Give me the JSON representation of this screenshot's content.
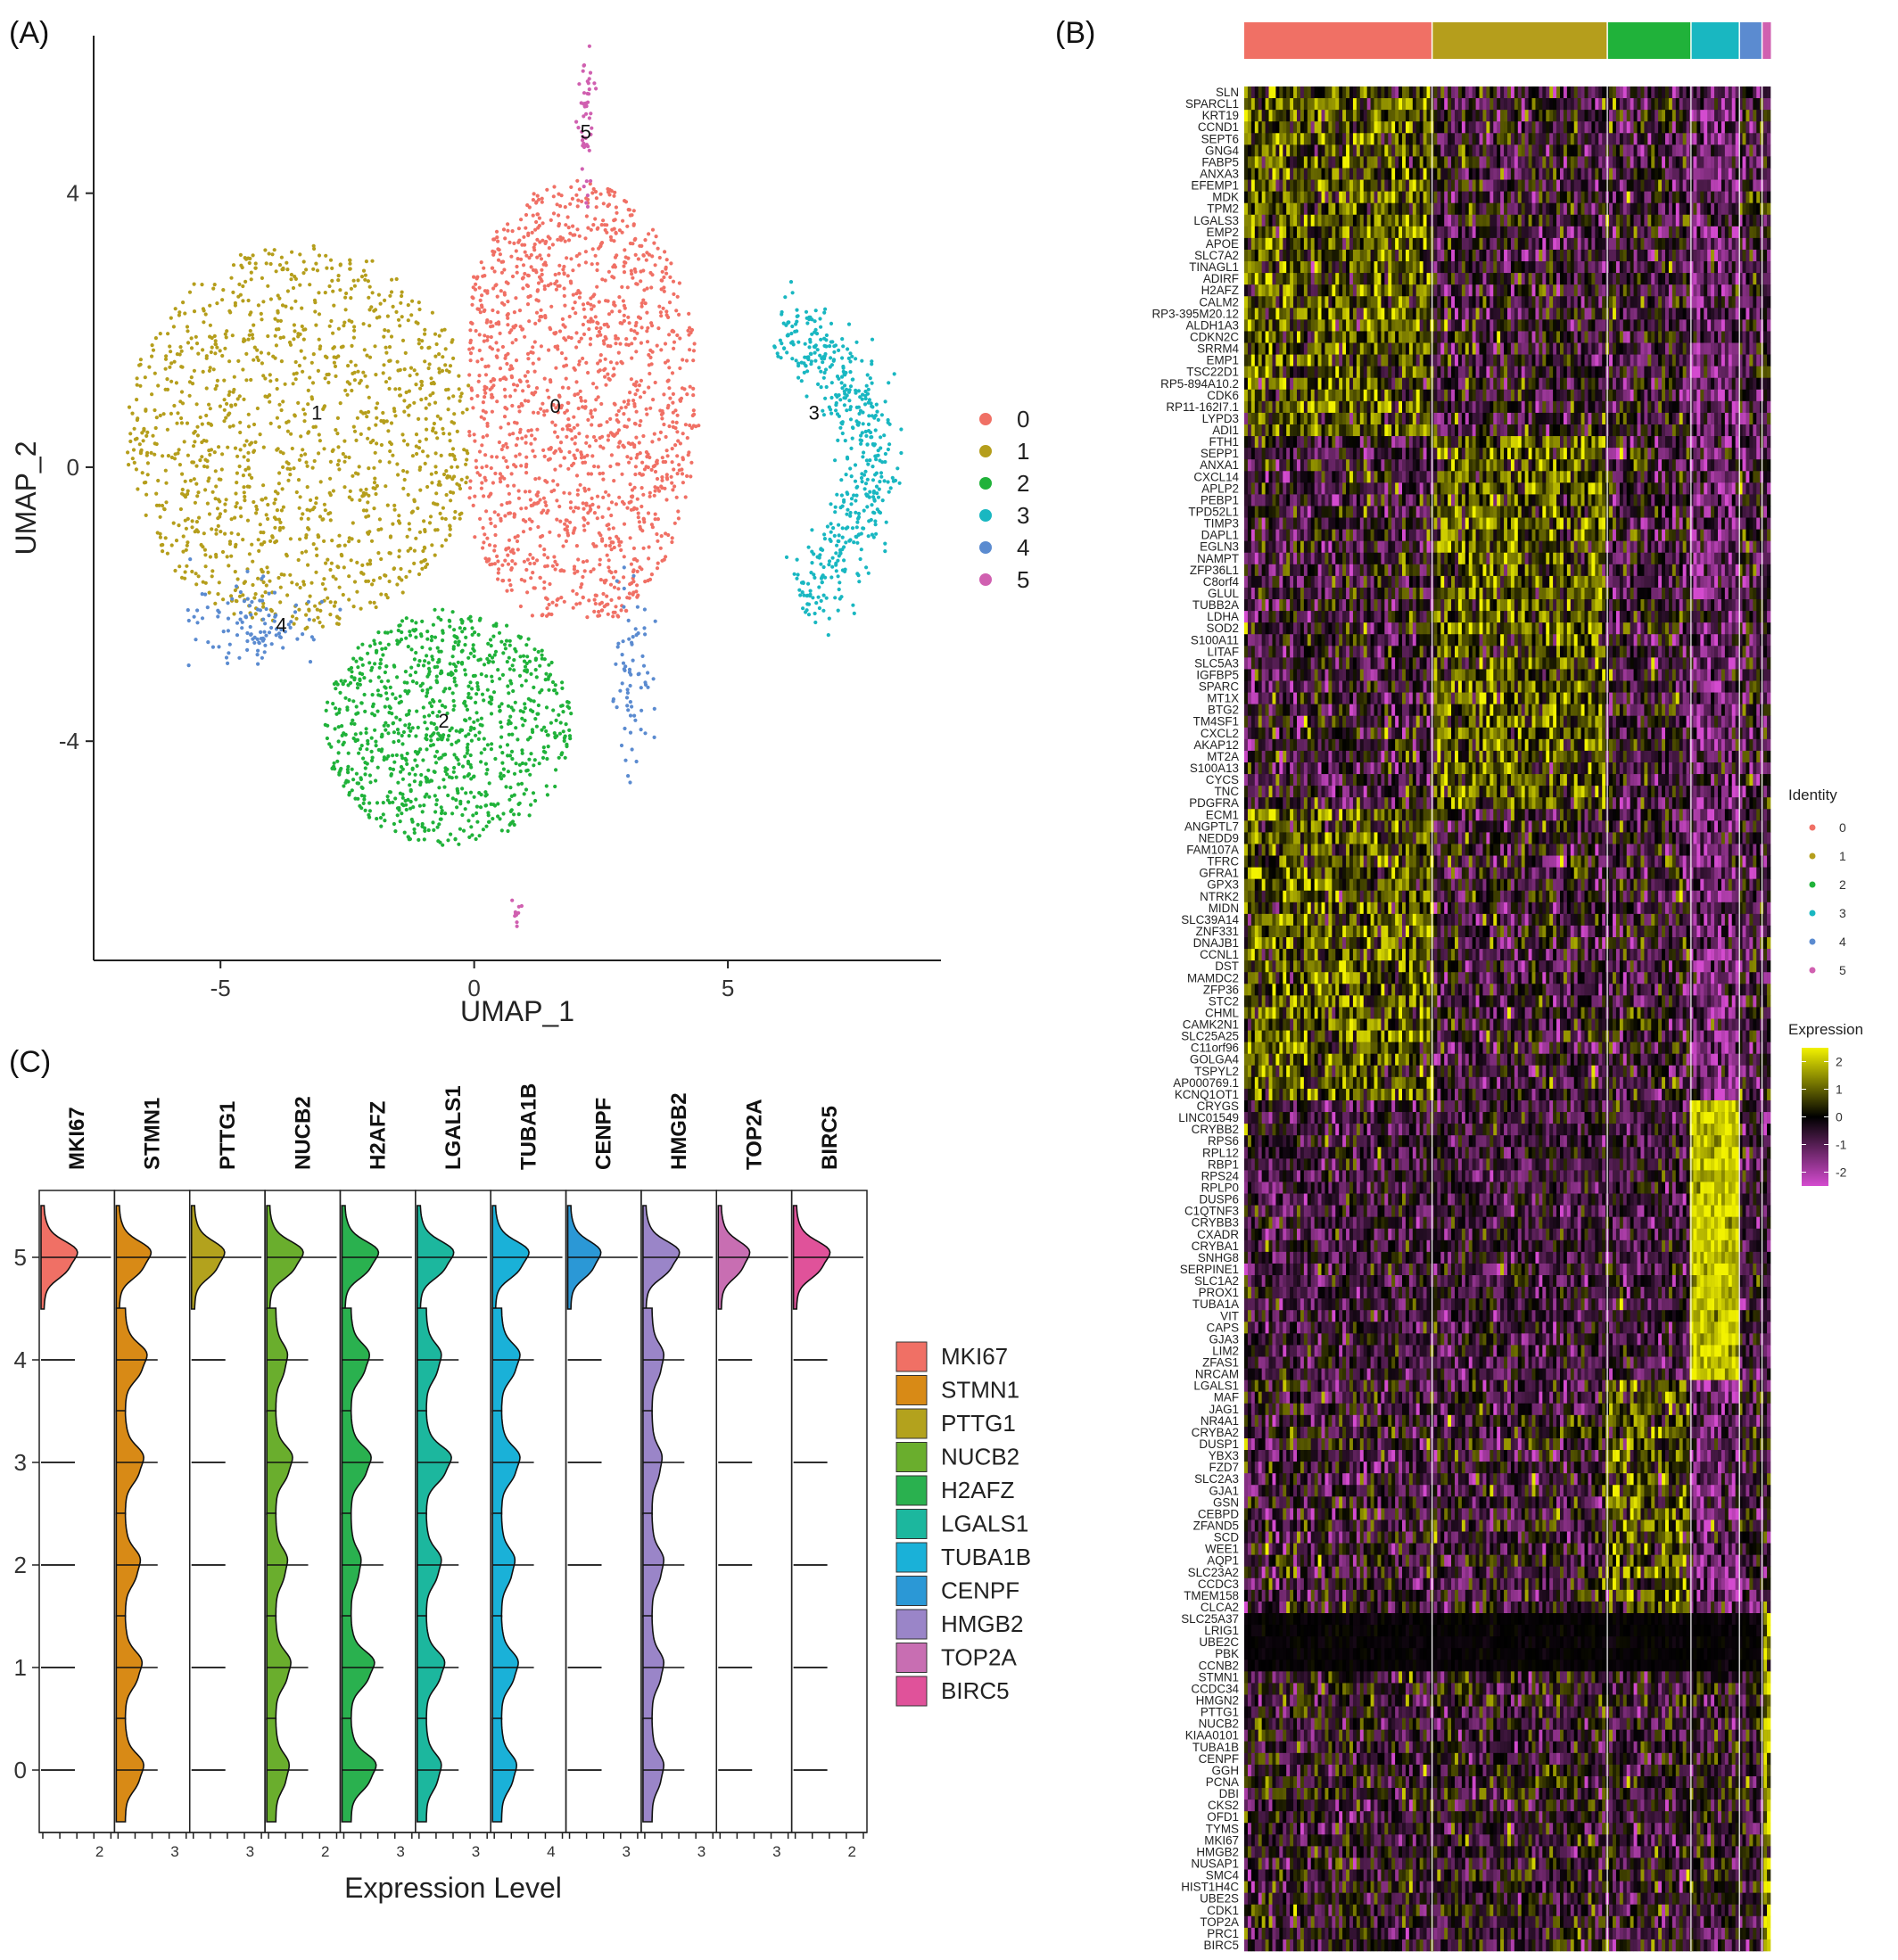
{
  "panels": {
    "a": "(A)",
    "b": "(B)",
    "c": "(C)"
  },
  "colors": {
    "clusters": [
      "#F07065",
      "#B59E1C",
      "#20B23A",
      "#19B7C1",
      "#5B8BD0",
      "#D060B0"
    ],
    "violins": [
      "#F07065",
      "#D88A16",
      "#B3A21D",
      "#6AAE2D",
      "#2AB14F",
      "#1CB79E",
      "#1AB1D8",
      "#2B98D6",
      "#9A85C8",
      "#C86EB2",
      "#E0529A"
    ]
  },
  "chart_data": [
    {
      "type": "scatter",
      "panel": "(A)",
      "xlabel": "UMAP_1",
      "ylabel": "UMAP_2",
      "xlim": [
        -7.5,
        9.2
      ],
      "ylim": [
        -7.2,
        6.3
      ],
      "xticks": [
        -5,
        0,
        5
      ],
      "yticks": [
        -4,
        0,
        4
      ],
      "legend": {
        "position": "right",
        "entries": [
          "0",
          "1",
          "2",
          "3",
          "4",
          "5"
        ]
      },
      "clusters": [
        {
          "name": "0",
          "label_pos": [
            1.6,
            0.9
          ],
          "approx_cells": 1500
        },
        {
          "name": "1",
          "label_pos": [
            -3.1,
            0.8
          ],
          "approx_cells": 1300
        },
        {
          "name": "2",
          "label_pos": [
            -0.6,
            -3.7
          ],
          "approx_cells": 950
        },
        {
          "name": "3",
          "label_pos": [
            6.7,
            0.8
          ],
          "approx_cells": 500
        },
        {
          "name": "4",
          "label_pos": [
            -3.8,
            -2.3
          ],
          "approx_cells": 180
        },
        {
          "name": "5",
          "label_pos": [
            2.2,
            4.9
          ],
          "approx_cells": 60
        }
      ]
    },
    {
      "type": "heatmap",
      "panel": "(B)",
      "cluster_bar": {
        "clusters": [
          "0",
          "1",
          "2",
          "3",
          "4",
          "5"
        ],
        "widths": [
          0.357,
          0.333,
          0.159,
          0.092,
          0.043,
          0.016
        ]
      },
      "genes": [
        "SLN",
        "SPARCL1",
        "KRT19",
        "CCND1",
        "SEPT6",
        "GNG4",
        "FABP5",
        "ANXA3",
        "EFEMP1",
        "MDK",
        "TPM2",
        "LGALS3",
        "EMP2",
        "APOE",
        "SLC7A2",
        "TINAGL1",
        "ADIRF",
        "H2AFZ",
        "CALM2",
        "RP3-395M20.12",
        "ALDH1A3",
        "CDKN2C",
        "SRRM4",
        "EMP1",
        "TSC22D1",
        "RP5-894A10.2",
        "CDK6",
        "RP11-162I7.1",
        "LYPD3",
        "ADI1",
        "FTH1",
        "SEPP1",
        "ANXA1",
        "CXCL14",
        "APLP2",
        "PEBP1",
        "TPD52L1",
        "TIMP3",
        "DAPL1",
        "EGLN3",
        "NAMPT",
        "ZFP36L1",
        "C8orf4",
        "GLUL",
        "TUBB2A",
        "LDHA",
        "SOD2",
        "S100A11",
        "LITAF",
        "SLC5A3",
        "IGFBP5",
        "SPARC",
        "MT1X",
        "BTG2",
        "TM4SF1",
        "CXCL2",
        "AKAP12",
        "MT2A",
        "S100A13",
        "CYCS",
        "TNC",
        "PDGFRA",
        "ECM1",
        "ANGPTL7",
        "NEDD9",
        "FAM107A",
        "TFRC",
        "GFRA1",
        "GPX3",
        "NTRK2",
        "MIDN",
        "SLC39A14",
        "ZNF331",
        "DNAJB1",
        "CCNL1",
        "DST",
        "MAMDC2",
        "ZFP36",
        "STC2",
        "CHML",
        "CAMK2N1",
        "SLC25A25",
        "C11orf96",
        "GOLGA4",
        "TSPYL2",
        "AP000769.1",
        "KCNQ1OT1",
        "CRYGS",
        "LINC01549",
        "CRYBB2",
        "RPS6",
        "RPL12",
        "RBP1",
        "RPS24",
        "RPLP0",
        "DUSP6",
        "C1QTNF3",
        "CRYBB3",
        "CXADR",
        "CRYBA1",
        "SNHG8",
        "SERPINE1",
        "SLC1A2",
        "PROX1",
        "TUBA1A",
        "VIT",
        "CAPS",
        "GJA3",
        "LIM2",
        "ZFAS1",
        "NRCAM",
        "LGALS1",
        "MAF",
        "JAG1",
        "NR4A1",
        "CRYBA2",
        "DUSP1",
        "YBX3",
        "FZD7",
        "SLC2A3",
        "GJA1",
        "GSN",
        "CEBPD",
        "ZFAND5",
        "SCD",
        "WEE1",
        "AQP1",
        "SLC23A2",
        "CCDC3",
        "TMEM158",
        "CLCA2",
        "SLC25A37",
        "LRIG1",
        "UBE2C",
        "PBK",
        "CCNB2",
        "STMN1",
        "CCDC34",
        "HMGN2",
        "PTTG1",
        "NUCB2",
        "KIAA0101",
        "TUBA1B",
        "CENPF",
        "GGH",
        "PCNA",
        "DBI",
        "CKS2",
        "OFD1",
        "TYMS",
        "MKI67",
        "HMGB2",
        "NUSAP1",
        "SMC4",
        "HIST1H4C",
        "UBE2S",
        "CDK1",
        "TOP2A",
        "PRC1",
        "BIRC5"
      ],
      "legend_identity": {
        "title": "Identity",
        "entries": [
          "0",
          "1",
          "2",
          "3",
          "4",
          "5"
        ]
      },
      "legend_expression": {
        "title": "Expression",
        "ticks": [
          "2",
          "1",
          "0",
          "-1",
          "-2"
        ],
        "range": [
          -2.5,
          2.5
        ]
      },
      "colorscale": [
        "#D44BCF",
        "#000000",
        "#F2F200"
      ]
    },
    {
      "type": "violin",
      "panel": "(C)",
      "xlabel": "Expression Level",
      "genes": [
        "MKI67",
        "STMN1",
        "PTTG1",
        "NUCB2",
        "H2AFZ",
        "LGALS1",
        "TUBA1B",
        "CENPF",
        "HMGB2",
        "TOP2A",
        "BIRC5"
      ],
      "identities": [
        "5",
        "4",
        "3",
        "2",
        "1",
        "0"
      ],
      "x_tick_labels": [
        "2",
        "3",
        "3",
        "2",
        "3",
        "3",
        "4",
        "3",
        "3",
        "3",
        "2"
      ],
      "legend": {
        "position": "right",
        "entries": [
          "MKI67",
          "STMN1",
          "PTTG1",
          "NUCB2",
          "H2AFZ",
          "LGALS1",
          "TUBA1B",
          "CENPF",
          "HMGB2",
          "TOP2A",
          "BIRC5"
        ]
      },
      "violin_widths": [
        [
          1.0,
          0.95,
          0.9,
          1.0,
          1.0,
          1.0,
          1.0,
          0.9,
          1.0,
          0.85,
          1.0
        ],
        [
          0.0,
          0.65,
          0.0,
          0.35,
          0.55,
          0.45,
          0.55,
          0.0,
          0.35,
          0.0,
          0.0
        ],
        [
          0.0,
          0.55,
          0.0,
          0.5,
          0.6,
          0.75,
          0.55,
          0.0,
          0.3,
          0.0,
          0.0
        ],
        [
          0.0,
          0.45,
          0.0,
          0.35,
          0.3,
          0.45,
          0.4,
          0.0,
          0.35,
          0.0,
          0.0
        ],
        [
          0.0,
          0.5,
          0.0,
          0.45,
          0.7,
          0.55,
          0.5,
          0.0,
          0.35,
          0.0,
          0.0
        ],
        [
          0.0,
          0.55,
          0.0,
          0.4,
          0.75,
          0.45,
          0.45,
          0.0,
          0.35,
          0.0,
          0.0
        ]
      ]
    }
  ]
}
